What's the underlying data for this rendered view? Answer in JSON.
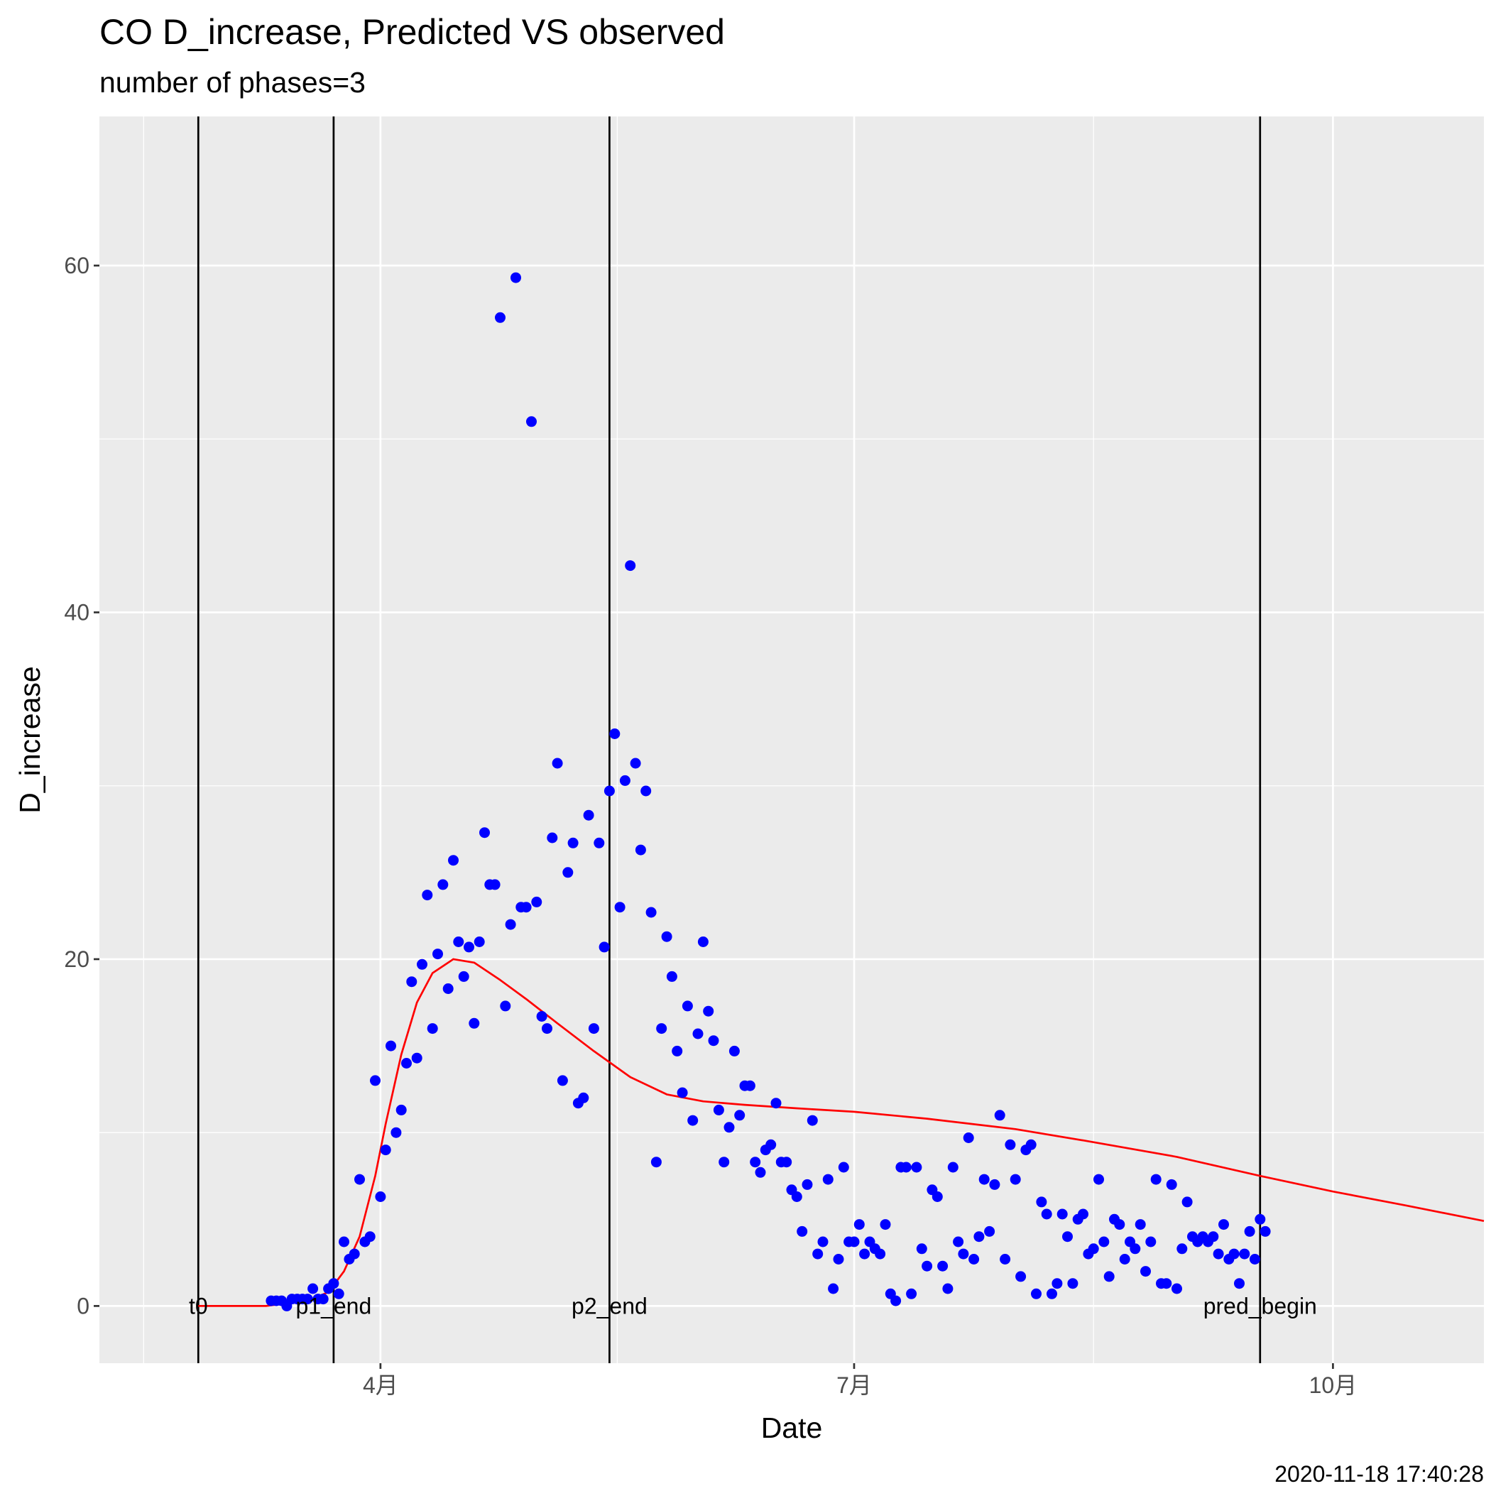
{
  "chart_data": {
    "type": "scatter",
    "title": "CO D_increase, Predicted VS observed",
    "subtitle": "number of phases=3",
    "xlabel": "Date",
    "ylabel": "D_increase",
    "caption": "2020-11-18 17:40:28",
    "x_axis": {
      "type": "date",
      "range": [
        "2020-02-07",
        "2020-10-30"
      ],
      "ticks": [
        {
          "date": "2020-04-01",
          "label": "4月"
        },
        {
          "date": "2020-07-01",
          "label": "7月"
        },
        {
          "date": "2020-10-01",
          "label": "10月"
        }
      ]
    },
    "y_axis": {
      "range": [
        -3.3,
        68.6
      ],
      "ticks": [
        0,
        20,
        40,
        60
      ],
      "minor_ticks": [
        10,
        30,
        50
      ]
    },
    "grid": true,
    "panel_background": "#ebebeb",
    "vertical_lines": [
      {
        "label": "t0",
        "date": "2020-02-26"
      },
      {
        "label": "p1_end",
        "date": "2020-03-23"
      },
      {
        "label": "p2_end",
        "date": "2020-05-15"
      },
      {
        "label": "pred_begin",
        "date": "2020-09-17"
      }
    ],
    "series": [
      {
        "kind": "observed",
        "color": "#0000ff",
        "points": [
          [
            "2020-03-11",
            0.3
          ],
          [
            "2020-03-12",
            0.3
          ],
          [
            "2020-03-13",
            0.3
          ],
          [
            "2020-03-14",
            0
          ],
          [
            "2020-03-15",
            0.4
          ],
          [
            "2020-03-16",
            0.4
          ],
          [
            "2020-03-17",
            0.4
          ],
          [
            "2020-03-18",
            0.4
          ],
          [
            "2020-03-19",
            1
          ],
          [
            "2020-03-20",
            0.4
          ],
          [
            "2020-03-21",
            0.4
          ],
          [
            "2020-03-22",
            1
          ],
          [
            "2020-03-23",
            1.3
          ],
          [
            "2020-03-24",
            0.7
          ],
          [
            "2020-03-25",
            3.7
          ],
          [
            "2020-03-26",
            2.7
          ],
          [
            "2020-03-27",
            3
          ],
          [
            "2020-03-28",
            7.3
          ],
          [
            "2020-03-29",
            3.7
          ],
          [
            "2020-03-30",
            4
          ],
          [
            "2020-03-31",
            13
          ],
          [
            "2020-04-01",
            6.3
          ],
          [
            "2020-04-02",
            9
          ],
          [
            "2020-04-03",
            15
          ],
          [
            "2020-04-04",
            10
          ],
          [
            "2020-04-05",
            11.3
          ],
          [
            "2020-04-06",
            14
          ],
          [
            "2020-04-07",
            18.7
          ],
          [
            "2020-04-08",
            14.3
          ],
          [
            "2020-04-09",
            19.7
          ],
          [
            "2020-04-10",
            23.7
          ],
          [
            "2020-04-11",
            16
          ],
          [
            "2020-04-12",
            20.3
          ],
          [
            "2020-04-13",
            24.3
          ],
          [
            "2020-04-14",
            18.3
          ],
          [
            "2020-04-15",
            25.7
          ],
          [
            "2020-04-16",
            21
          ],
          [
            "2020-04-17",
            19
          ],
          [
            "2020-04-18",
            20.7
          ],
          [
            "2020-04-19",
            16.3
          ],
          [
            "2020-04-20",
            21
          ],
          [
            "2020-04-21",
            27.3
          ],
          [
            "2020-04-22",
            24.3
          ],
          [
            "2020-04-23",
            24.3
          ],
          [
            "2020-04-24",
            57
          ],
          [
            "2020-04-25",
            17.3
          ],
          [
            "2020-04-26",
            22
          ],
          [
            "2020-04-27",
            59.3
          ],
          [
            "2020-04-28",
            23
          ],
          [
            "2020-04-29",
            23
          ],
          [
            "2020-04-30",
            51
          ],
          [
            "2020-05-01",
            23.3
          ],
          [
            "2020-05-02",
            16.7
          ],
          [
            "2020-05-03",
            16
          ],
          [
            "2020-05-04",
            27
          ],
          [
            "2020-05-05",
            31.3
          ],
          [
            "2020-05-06",
            13
          ],
          [
            "2020-05-07",
            25
          ],
          [
            "2020-05-08",
            26.7
          ],
          [
            "2020-05-09",
            11.7
          ],
          [
            "2020-05-10",
            12
          ],
          [
            "2020-05-11",
            28.3
          ],
          [
            "2020-05-12",
            16
          ],
          [
            "2020-05-13",
            26.7
          ],
          [
            "2020-05-14",
            20.7
          ],
          [
            "2020-05-15",
            29.7
          ],
          [
            "2020-05-16",
            33
          ],
          [
            "2020-05-17",
            23
          ],
          [
            "2020-05-18",
            30.3
          ],
          [
            "2020-05-19",
            42.7
          ],
          [
            "2020-05-20",
            31.3
          ],
          [
            "2020-05-21",
            26.3
          ],
          [
            "2020-05-22",
            29.7
          ],
          [
            "2020-05-23",
            22.7
          ],
          [
            "2020-05-24",
            8.3
          ],
          [
            "2020-05-25",
            16
          ],
          [
            "2020-05-26",
            21.3
          ],
          [
            "2020-05-27",
            19
          ],
          [
            "2020-05-28",
            14.7
          ],
          [
            "2020-05-29",
            12.3
          ],
          [
            "2020-05-30",
            17.3
          ],
          [
            "2020-05-31",
            10.7
          ],
          [
            "2020-06-01",
            15.7
          ],
          [
            "2020-06-02",
            21
          ],
          [
            "2020-06-03",
            17
          ],
          [
            "2020-06-04",
            15.3
          ],
          [
            "2020-06-05",
            11.3
          ],
          [
            "2020-06-06",
            8.3
          ],
          [
            "2020-06-07",
            10.3
          ],
          [
            "2020-06-08",
            14.7
          ],
          [
            "2020-06-09",
            11
          ],
          [
            "2020-06-10",
            12.7
          ],
          [
            "2020-06-11",
            12.7
          ],
          [
            "2020-06-12",
            8.3
          ],
          [
            "2020-06-13",
            7.7
          ],
          [
            "2020-06-14",
            9
          ],
          [
            "2020-06-15",
            9.3
          ],
          [
            "2020-06-16",
            11.7
          ],
          [
            "2020-06-17",
            8.3
          ],
          [
            "2020-06-18",
            8.3
          ],
          [
            "2020-06-19",
            6.7
          ],
          [
            "2020-06-20",
            6.3
          ],
          [
            "2020-06-21",
            4.3
          ],
          [
            "2020-06-22",
            7
          ],
          [
            "2020-06-23",
            10.7
          ],
          [
            "2020-06-24",
            3
          ],
          [
            "2020-06-25",
            3.7
          ],
          [
            "2020-06-26",
            7.3
          ],
          [
            "2020-06-27",
            1
          ],
          [
            "2020-06-28",
            2.7
          ],
          [
            "2020-06-29",
            8
          ],
          [
            "2020-06-30",
            3.7
          ],
          [
            "2020-07-01",
            3.7
          ],
          [
            "2020-07-02",
            4.7
          ],
          [
            "2020-07-03",
            3
          ],
          [
            "2020-07-04",
            3.7
          ],
          [
            "2020-07-05",
            3.3
          ],
          [
            "2020-07-06",
            3
          ],
          [
            "2020-07-07",
            4.7
          ],
          [
            "2020-07-08",
            0.7
          ],
          [
            "2020-07-09",
            0.3
          ],
          [
            "2020-07-10",
            8
          ],
          [
            "2020-07-11",
            8
          ],
          [
            "2020-07-12",
            0.7
          ],
          [
            "2020-07-13",
            8
          ],
          [
            "2020-07-14",
            3.3
          ],
          [
            "2020-07-15",
            2.3
          ],
          [
            "2020-07-16",
            6.7
          ],
          [
            "2020-07-17",
            6.3
          ],
          [
            "2020-07-18",
            2.3
          ],
          [
            "2020-07-19",
            1
          ],
          [
            "2020-07-20",
            8
          ],
          [
            "2020-07-21",
            3.7
          ],
          [
            "2020-07-22",
            3
          ],
          [
            "2020-07-23",
            9.7
          ],
          [
            "2020-07-24",
            2.7
          ],
          [
            "2020-07-25",
            4
          ],
          [
            "2020-07-26",
            7.3
          ],
          [
            "2020-07-27",
            4.3
          ],
          [
            "2020-07-28",
            7
          ],
          [
            "2020-07-29",
            11
          ],
          [
            "2020-07-30",
            2.7
          ],
          [
            "2020-07-31",
            9.3
          ],
          [
            "2020-08-01",
            7.3
          ],
          [
            "2020-08-02",
            1.7
          ],
          [
            "2020-08-03",
            9
          ],
          [
            "2020-08-04",
            9.3
          ],
          [
            "2020-08-05",
            0.7
          ],
          [
            "2020-08-06",
            6
          ],
          [
            "2020-08-07",
            5.3
          ],
          [
            "2020-08-08",
            0.7
          ],
          [
            "2020-08-09",
            1.3
          ],
          [
            "2020-08-10",
            5.3
          ],
          [
            "2020-08-11",
            4
          ],
          [
            "2020-08-12",
            1.3
          ],
          [
            "2020-08-13",
            5
          ],
          [
            "2020-08-14",
            5.3
          ],
          [
            "2020-08-15",
            3
          ],
          [
            "2020-08-16",
            3.3
          ],
          [
            "2020-08-17",
            7.3
          ],
          [
            "2020-08-18",
            3.7
          ],
          [
            "2020-08-19",
            1.7
          ],
          [
            "2020-08-20",
            5
          ],
          [
            "2020-08-21",
            4.7
          ],
          [
            "2020-08-22",
            2.7
          ],
          [
            "2020-08-23",
            3.7
          ],
          [
            "2020-08-24",
            3.3
          ],
          [
            "2020-08-25",
            4.7
          ],
          [
            "2020-08-26",
            2
          ],
          [
            "2020-08-27",
            3.7
          ],
          [
            "2020-08-28",
            7.3
          ],
          [
            "2020-08-29",
            1.3
          ],
          [
            "2020-08-30",
            1.3
          ],
          [
            "2020-08-31",
            7
          ],
          [
            "2020-09-01",
            1
          ],
          [
            "2020-09-02",
            3.3
          ],
          [
            "2020-09-03",
            6
          ],
          [
            "2020-09-04",
            4
          ],
          [
            "2020-09-05",
            3.7
          ],
          [
            "2020-09-06",
            4
          ],
          [
            "2020-09-07",
            3.7
          ],
          [
            "2020-09-08",
            4
          ],
          [
            "2020-09-09",
            3
          ],
          [
            "2020-09-10",
            4.7
          ],
          [
            "2020-09-11",
            2.7
          ],
          [
            "2020-09-12",
            3
          ],
          [
            "2020-09-13",
            1.3
          ],
          [
            "2020-09-14",
            3
          ],
          [
            "2020-09-15",
            4.3
          ],
          [
            "2020-09-16",
            2.7
          ],
          [
            "2020-09-17",
            5
          ],
          [
            "2020-09-18",
            4.3
          ]
        ]
      },
      {
        "kind": "predicted",
        "color": "#ff0000",
        "points": [
          [
            "2020-02-26",
            0
          ],
          [
            "2020-03-10",
            0
          ],
          [
            "2020-03-18",
            0.3
          ],
          [
            "2020-03-22",
            0.8
          ],
          [
            "2020-03-25",
            2
          ],
          [
            "2020-03-28",
            4
          ],
          [
            "2020-03-31",
            7.5
          ],
          [
            "2020-04-02",
            10.5
          ],
          [
            "2020-04-05",
            14.5
          ],
          [
            "2020-04-08",
            17.5
          ],
          [
            "2020-04-11",
            19.2
          ],
          [
            "2020-04-15",
            20
          ],
          [
            "2020-04-19",
            19.8
          ],
          [
            "2020-04-24",
            18.8
          ],
          [
            "2020-04-29",
            17.7
          ],
          [
            "2020-05-05",
            16.3
          ],
          [
            "2020-05-12",
            14.7
          ],
          [
            "2020-05-19",
            13.2
          ],
          [
            "2020-05-26",
            12.2
          ],
          [
            "2020-06-02",
            11.8
          ],
          [
            "2020-06-10",
            11.6
          ],
          [
            "2020-06-20",
            11.4
          ],
          [
            "2020-07-01",
            11.2
          ],
          [
            "2020-07-15",
            10.8
          ],
          [
            "2020-08-01",
            10.2
          ],
          [
            "2020-08-15",
            9.5
          ],
          [
            "2020-09-01",
            8.6
          ],
          [
            "2020-09-17",
            7.5
          ],
          [
            "2020-10-01",
            6.6
          ],
          [
            "2020-10-15",
            5.8
          ],
          [
            "2020-10-30",
            4.9
          ]
        ]
      }
    ]
  }
}
